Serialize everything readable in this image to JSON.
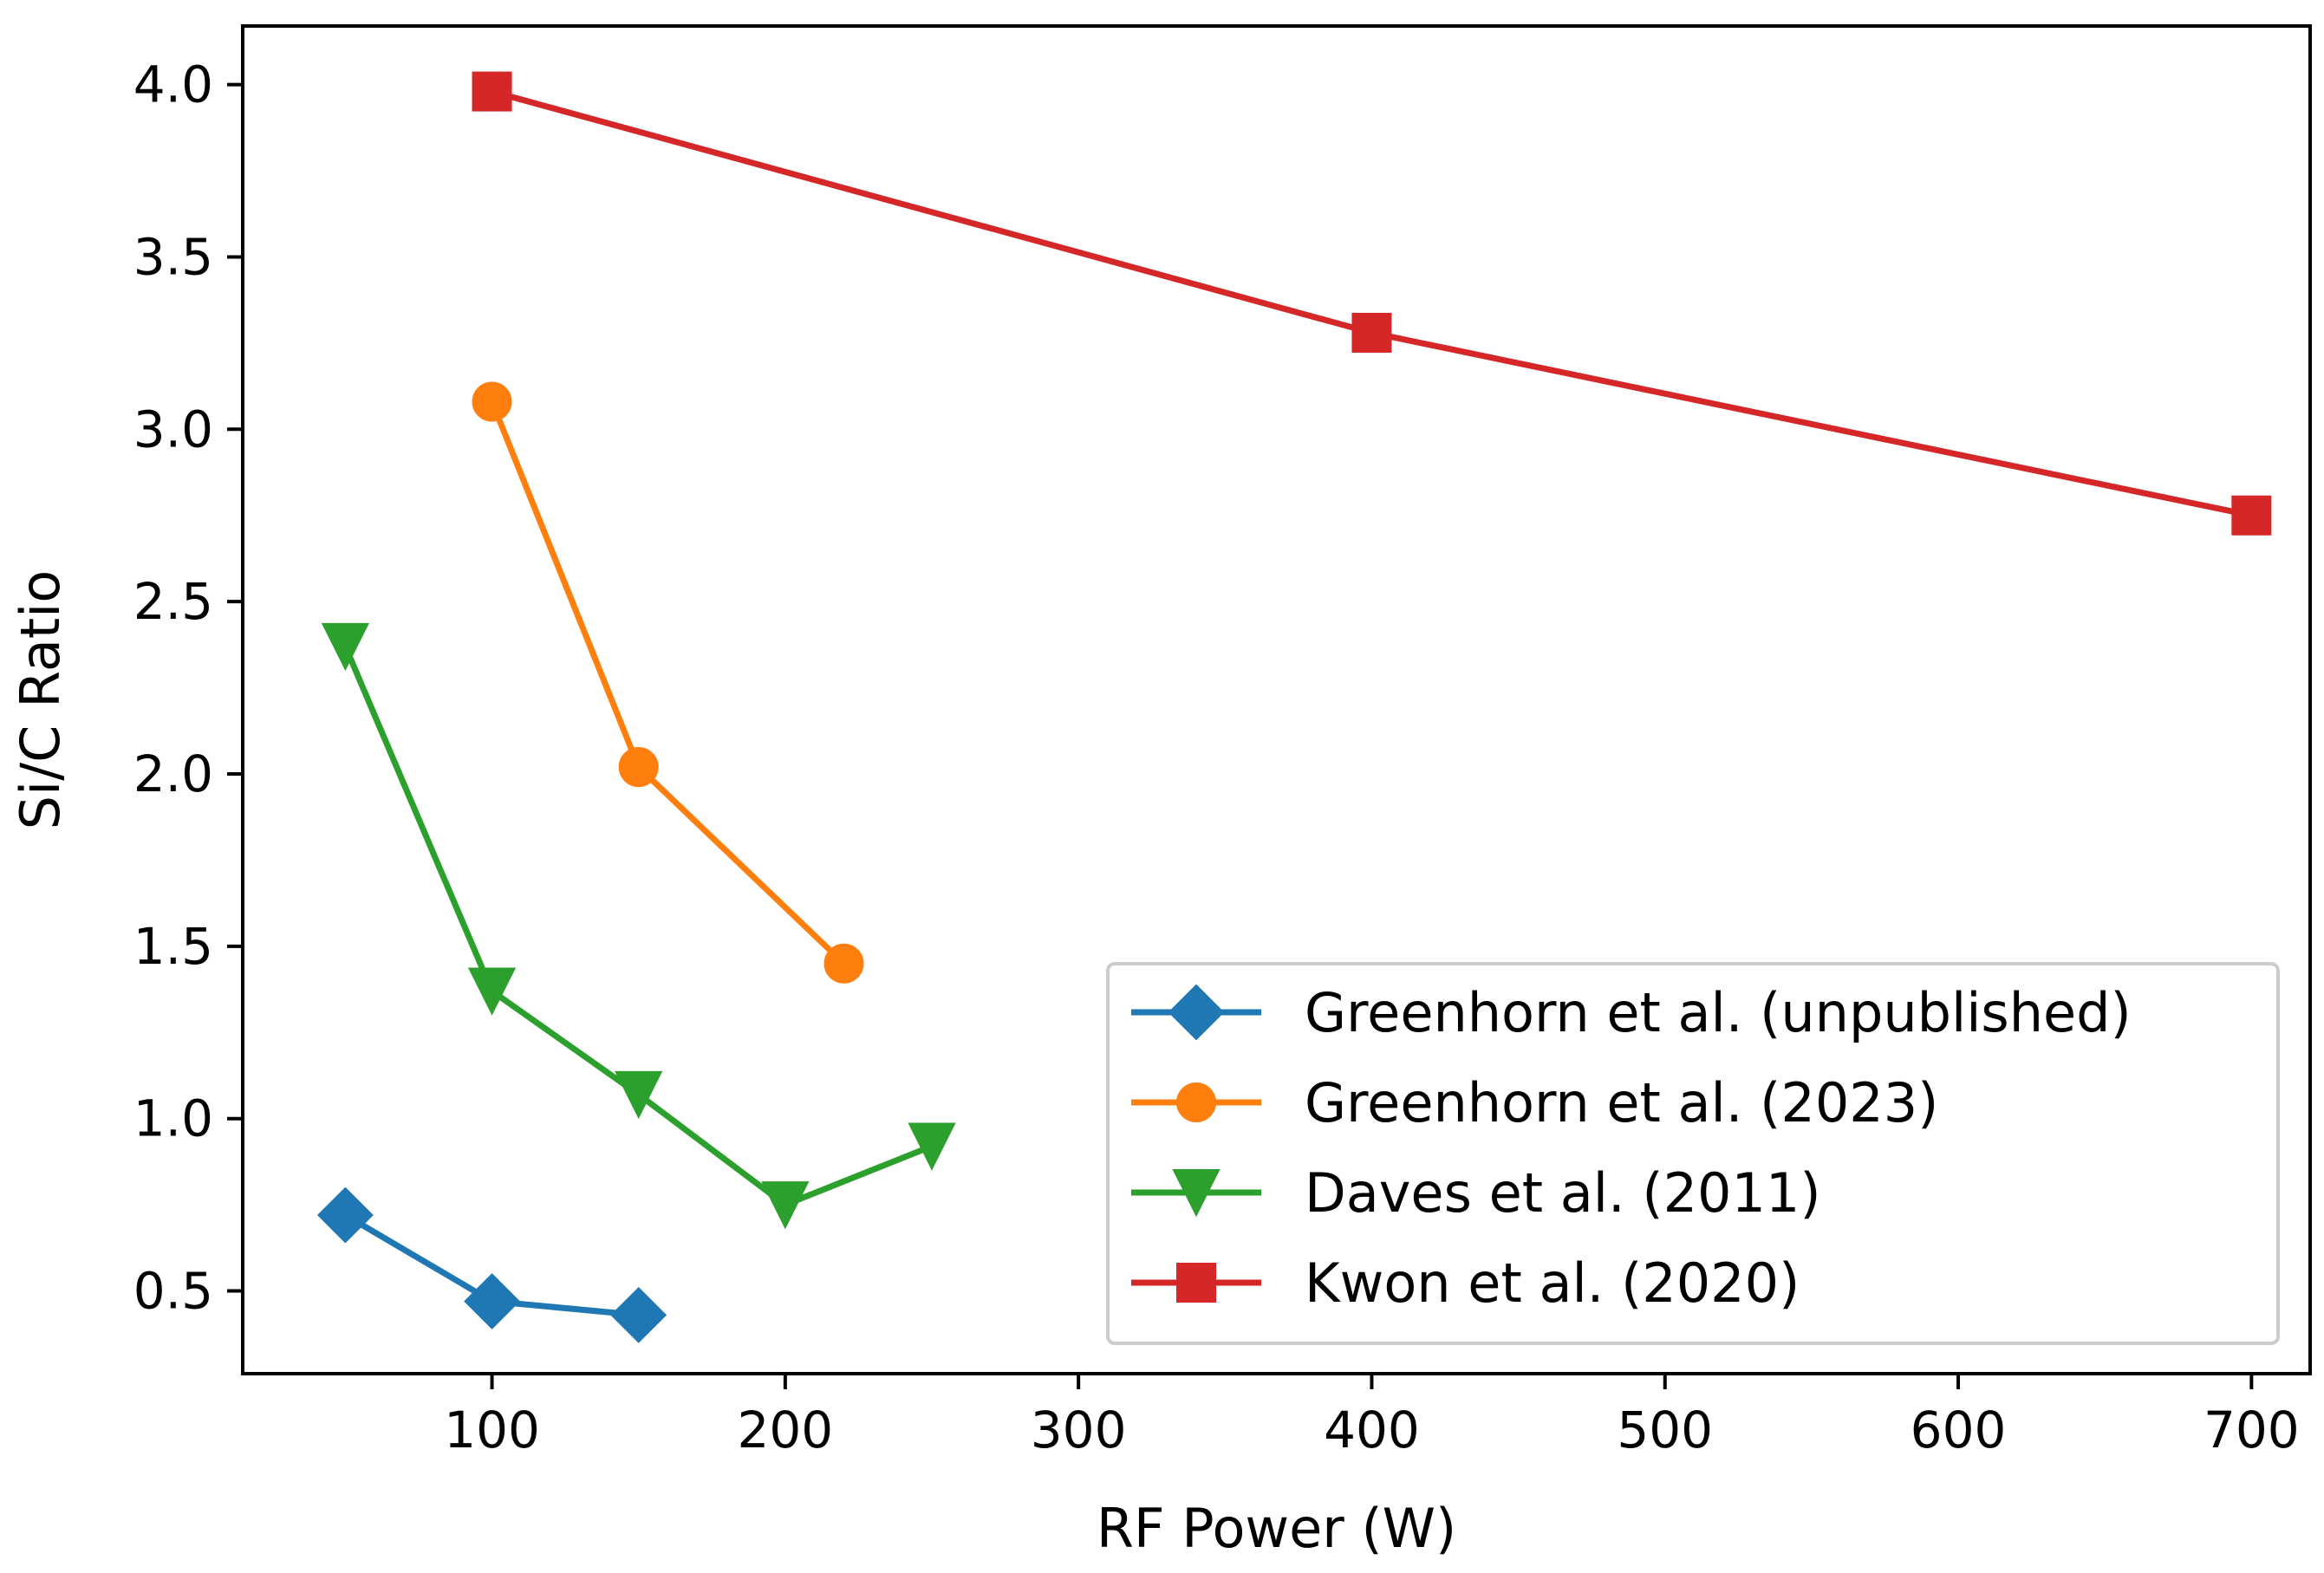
{
  "chart_data": {
    "type": "line",
    "title": "",
    "xlabel": "RF Power (W)",
    "ylabel": "Si/C Ratio",
    "xlim": [
      15,
      720
    ],
    "ylim": [
      0.26,
      4.17
    ],
    "grid": false,
    "legend_position": "lower-right",
    "x_ticks": [
      {
        "value": 100,
        "label": "100"
      },
      {
        "value": 200,
        "label": "200"
      },
      {
        "value": 300,
        "label": "300"
      },
      {
        "value": 400,
        "label": "400"
      },
      {
        "value": 500,
        "label": "500"
      },
      {
        "value": 600,
        "label": "600"
      },
      {
        "value": 700,
        "label": "700"
      }
    ],
    "y_ticks": [
      {
        "value": 0.5,
        "label": "0.5"
      },
      {
        "value": 1.0,
        "label": "1.0"
      },
      {
        "value": 1.5,
        "label": "1.5"
      },
      {
        "value": 2.0,
        "label": "2.0"
      },
      {
        "value": 2.5,
        "label": "2.5"
      },
      {
        "value": 3.0,
        "label": "3.0"
      },
      {
        "value": 3.5,
        "label": "3.5"
      },
      {
        "value": 4.0,
        "label": "4.0"
      }
    ],
    "series": [
      {
        "name": "Greenhorn et al. (unpublished)",
        "color": "#1f77b4",
        "marker": "diamond",
        "x": [
          50,
          100,
          150
        ],
        "y": [
          0.72,
          0.47,
          0.43
        ]
      },
      {
        "name": "Greenhorn et al. (2023)",
        "color": "#ff7f0e",
        "marker": "circle",
        "x": [
          100,
          150,
          220
        ],
        "y": [
          3.08,
          2.02,
          1.45
        ]
      },
      {
        "name": "Daves et al. (2011)",
        "color": "#2ca02c",
        "marker": "triangle-down",
        "x": [
          50,
          100,
          150,
          200,
          250
        ],
        "y": [
          2.37,
          1.37,
          1.07,
          0.75,
          0.92
        ]
      },
      {
        "name": "Kwon et al. (2020)",
        "color": "#d62728",
        "marker": "square",
        "x": [
          100,
          400,
          700
        ],
        "y": [
          3.98,
          3.28,
          2.75
        ]
      }
    ]
  }
}
